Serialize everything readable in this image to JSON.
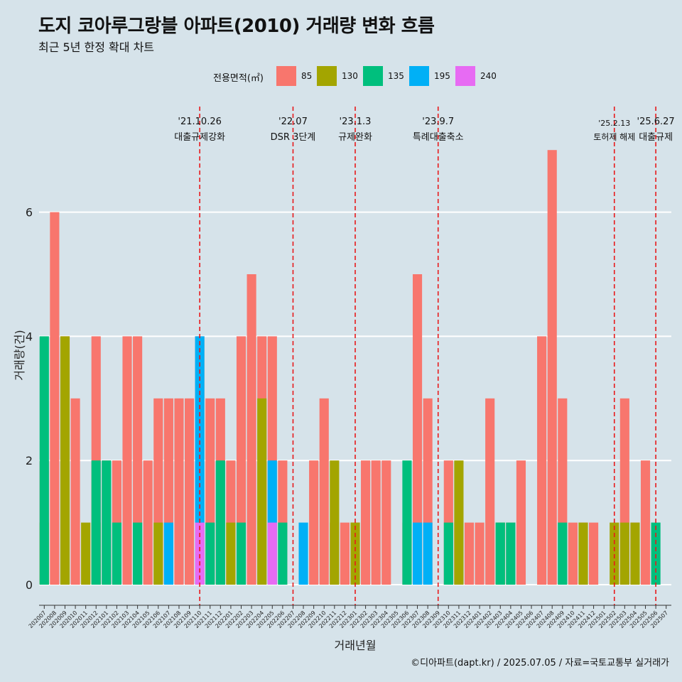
{
  "title": "도지 코아루그랑블 아파트(2010) 거래량 변화 흐름",
  "subtitle": "최근 5년 한정 확대 차트",
  "caption": "©디아파트(dapt.kr) / 2025.07.05 / 자료=국토교통부 실거래가",
  "legend": {
    "title": "전용면적(㎡)",
    "items": [
      {
        "label": "85",
        "color": "#f8766d"
      },
      {
        "label": "130",
        "color": "#a3a500"
      },
      {
        "label": "135",
        "color": "#00bf7d"
      },
      {
        "label": "195",
        "color": "#00b0f6"
      },
      {
        "label": "240",
        "color": "#e76bf3"
      }
    ]
  },
  "chart_data": {
    "type": "bar",
    "title": "도지 코아루그랑블 아파트(2010) 거래량 변화 흐름",
    "xlabel": "거래년월",
    "ylabel": "거래량(건)",
    "ylim": [
      0,
      7.4
    ],
    "yticks": [
      0,
      2,
      4,
      6
    ],
    "categories": [
      "202007",
      "202008",
      "202009",
      "202010",
      "202011",
      "202012",
      "202101",
      "202102",
      "202103",
      "202104",
      "202105",
      "202106",
      "202107",
      "202108",
      "202109",
      "202110",
      "202111",
      "202112",
      "202201",
      "202202",
      "202203",
      "202204",
      "202205",
      "202206",
      "202207",
      "202208",
      "202209",
      "202210",
      "202211",
      "202212",
      "202301",
      "202302",
      "202303",
      "202304",
      "202305",
      "202306",
      "202307",
      "202308",
      "202309",
      "202310",
      "202311",
      "202312",
      "202401",
      "202402",
      "202403",
      "202404",
      "202405",
      "202406",
      "202407",
      "202408",
      "202409",
      "202410",
      "202411",
      "202412",
      "202501",
      "202502",
      "202503",
      "202504",
      "202505",
      "202506",
      "202507"
    ],
    "series": [
      {
        "name": "85",
        "color": "#f8766d",
        "values": [
          2,
          6,
          4,
          3,
          0,
          4,
          2,
          2,
          4,
          4,
          2,
          3,
          3,
          3,
          3,
          4,
          3,
          3,
          2,
          4,
          5,
          4,
          4,
          2,
          0,
          0,
          2,
          3,
          1,
          1,
          1,
          2,
          2,
          2,
          0,
          1,
          5,
          3,
          0,
          2,
          1,
          1,
          1,
          3,
          1,
          1,
          2,
          0,
          4,
          7,
          3,
          1,
          1,
          1,
          0,
          0,
          3,
          1,
          2,
          0,
          0
        ]
      },
      {
        "name": "130",
        "color": "#a3a500",
        "values": [
          1,
          0,
          4,
          0,
          1,
          1,
          0,
          0,
          0,
          0,
          0,
          1,
          0,
          0,
          0,
          0,
          0,
          0,
          1,
          0,
          0,
          3,
          0,
          0,
          0,
          0,
          0,
          0,
          2,
          0,
          1,
          0,
          0,
          0,
          0,
          0,
          0,
          0,
          0,
          0,
          2,
          0,
          0,
          0,
          1,
          0,
          0,
          0,
          0,
          0,
          0,
          0,
          1,
          0,
          0,
          1,
          1,
          1,
          0,
          0,
          0
        ]
      },
      {
        "name": "135",
        "color": "#00bf7d",
        "values": [
          4,
          0,
          0,
          0,
          0,
          2,
          2,
          1,
          0,
          1,
          0,
          0,
          0,
          0,
          0,
          0,
          1,
          2,
          0,
          1,
          0,
          0,
          0,
          1,
          0,
          0,
          0,
          0,
          0,
          0,
          0,
          0,
          0,
          0,
          0,
          2,
          0,
          0,
          0,
          1,
          0,
          0,
          0,
          0,
          1,
          1,
          0,
          0,
          0,
          0,
          1,
          0,
          0,
          0,
          0,
          0,
          0,
          0,
          0,
          1,
          0
        ]
      },
      {
        "name": "195",
        "color": "#00b0f6",
        "values": [
          0,
          0,
          0,
          0,
          0,
          0,
          0,
          0,
          0,
          0,
          0,
          0,
          1,
          0,
          0,
          4,
          0,
          0,
          0,
          0,
          0,
          0,
          2,
          0,
          0,
          1,
          0,
          0,
          0,
          0,
          0,
          0,
          0,
          0,
          0,
          0,
          1,
          1,
          0,
          0,
          0,
          0,
          0,
          0,
          0,
          0,
          0,
          0,
          0,
          0,
          0,
          0,
          0,
          0,
          0,
          0,
          0,
          0,
          0,
          0,
          0
        ]
      },
      {
        "name": "240",
        "color": "#e76bf3",
        "values": [
          0,
          0,
          0,
          0,
          0,
          0,
          0,
          0,
          0,
          0,
          0,
          0,
          0,
          0,
          0,
          1,
          0,
          0,
          0,
          0,
          0,
          0,
          1,
          0,
          0,
          0,
          0,
          0,
          0,
          0,
          0,
          0,
          0,
          0,
          0,
          0,
          0,
          0,
          0,
          0,
          0,
          0,
          0,
          0,
          0,
          0,
          0,
          0,
          0,
          0,
          0,
          0,
          0,
          0,
          0,
          0,
          0,
          0,
          0,
          0,
          0
        ]
      }
    ],
    "events": [
      {
        "date": "'21.10.26",
        "label": "대출규제강화",
        "category": "202110"
      },
      {
        "date": "'22.07",
        "label": "DSR 3단계",
        "category": "202207"
      },
      {
        "date": "'23.1.3",
        "label": "규제완화",
        "category": "202301"
      },
      {
        "date": "'23.9.7",
        "label": "특례대출축소",
        "category": "202309"
      },
      {
        "date": "'25.2.13",
        "label": "토허제 해제",
        "category": "202502"
      },
      {
        "date": "'25.6.27",
        "label": "대출규제",
        "category": "202506"
      }
    ],
    "event_line_color": "#e8191b",
    "grid": true,
    "legend_position": "top"
  }
}
